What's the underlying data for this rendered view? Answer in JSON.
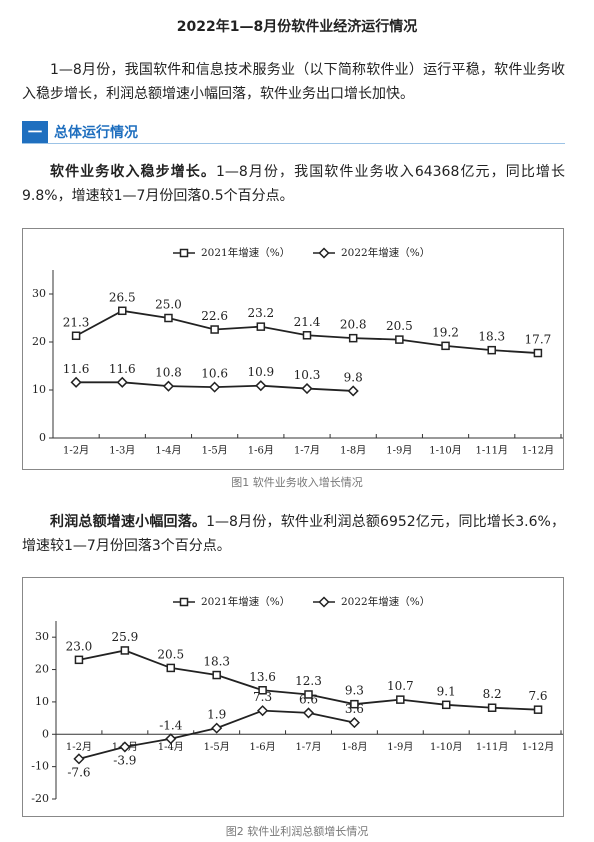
{
  "title": "2022年1—8月份软件业经济运行情况",
  "intro": "1—8月份，我国软件和信息技术服务业（以下简称软件业）运行平稳，软件业务收入稳步增长，利润总额增速小幅回落，软件业务出口增长加快。",
  "section": {
    "number": "一",
    "heading": "总体运行情况"
  },
  "blocks": [
    {
      "lead": "软件业务收入稳步增长。",
      "text": "1—8月份，我国软件业务收入64368亿元，同比增长9.8%，增速较1—7月份回落0.5个百分点。"
    },
    {
      "lead": "利润总额增速小幅回落。",
      "text": "1—8月份，软件业利润总额6952亿元，同比增长3.6%，增速较1—7月份回落3个百分点。"
    }
  ],
  "chart_data": [
    {
      "type": "line",
      "caption": "图1  软件业务收入增长情况",
      "categories": [
        "1-2月",
        "1-3月",
        "1-4月",
        "1-5月",
        "1-6月",
        "1-7月",
        "1-8月",
        "1-9月",
        "1-10月",
        "1-11月",
        "1-12月"
      ],
      "series": [
        {
          "name": "2021年增速（%）",
          "color": "#222222",
          "marker": "square",
          "values": [
            21.3,
            26.5,
            25.0,
            22.6,
            23.2,
            21.4,
            20.8,
            20.5,
            19.2,
            18.3,
            17.7
          ],
          "value_labels": [
            "21.3",
            "26.5",
            "25.0",
            "22.6",
            "23.2",
            "21.4",
            "20.8",
            "20.5",
            "19.2",
            "18.3",
            "17.7"
          ]
        },
        {
          "name": "2022年增速（%）",
          "color": "#222222",
          "marker": "diamond",
          "values": [
            11.6,
            11.6,
            10.8,
            10.6,
            10.9,
            10.3,
            9.8,
            null,
            null,
            null,
            null
          ],
          "value_labels": [
            "11.6",
            "11.6",
            "10.8",
            "10.6",
            "10.9",
            "10.3",
            "9.8",
            null,
            null,
            null,
            null
          ]
        }
      ],
      "ylim": [
        0,
        35
      ],
      "yticks": [
        0,
        10,
        20,
        30
      ],
      "legend": "top"
    },
    {
      "type": "line",
      "caption": "图2  软件业利润总额增长情况",
      "categories": [
        "1-2月",
        "1-3月",
        "1-4月",
        "1-5月",
        "1-6月",
        "1-7月",
        "1-8月",
        "1-9月",
        "1-10月",
        "1-11月",
        "1-12月"
      ],
      "series": [
        {
          "name": "2021年增速（%）",
          "color": "#222222",
          "marker": "square",
          "values": [
            23.0,
            25.9,
            20.5,
            18.3,
            13.6,
            12.3,
            9.3,
            10.7,
            9.1,
            8.2,
            7.6
          ],
          "value_labels": [
            "23.0",
            "25.9",
            "20.5",
            "18.3",
            "13.6",
            "12.3",
            "9.3",
            "10.7",
            "9.1",
            "8.2",
            "7.6"
          ]
        },
        {
          "name": "2022年增速（%）",
          "color": "#222222",
          "marker": "diamond",
          "values": [
            -7.6,
            -3.9,
            -1.4,
            1.9,
            7.3,
            6.6,
            3.6,
            null,
            null,
            null,
            null
          ],
          "value_labels": [
            "-7.6",
            "-3.9",
            "-1.4",
            "1.9",
            "7.3",
            "6.6",
            "3.6",
            null,
            null,
            null,
            null
          ]
        }
      ],
      "ylim": [
        -20,
        35
      ],
      "yticks": [
        -20,
        -10,
        0,
        10,
        20,
        30
      ],
      "legend": "top"
    }
  ]
}
